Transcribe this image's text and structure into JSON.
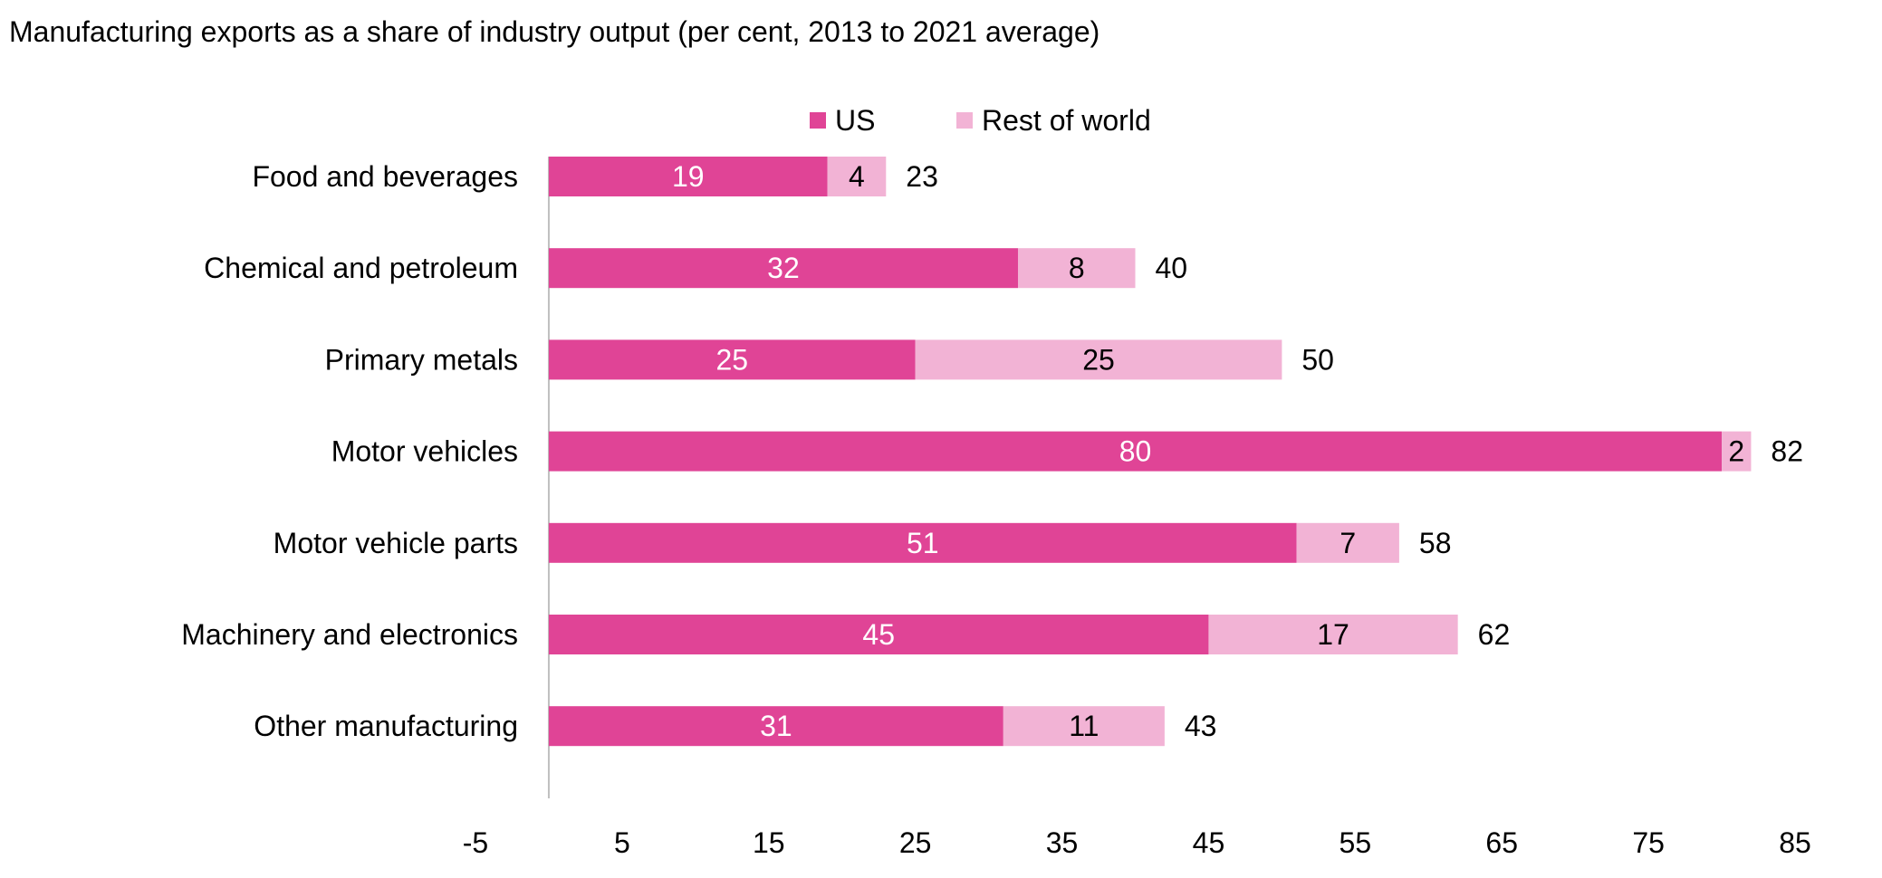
{
  "chart_data": {
    "type": "bar",
    "orientation": "horizontal",
    "stacked": true,
    "title": "Manufacturing exports as a share of industry output (per cent, 2013 to 2021 average)",
    "categories": [
      "Food and beverages",
      "Chemical and petroleum",
      "Primary metals",
      "Motor vehicles",
      "Motor vehicle parts",
      "Machinery and electronics",
      "Other manufacturing"
    ],
    "series": [
      {
        "name": "US",
        "color": "#E04496",
        "label_color": "#ffffff",
        "values": [
          19,
          32,
          25,
          80,
          51,
          45,
          31
        ]
      },
      {
        "name": "Rest of world",
        "color": "#F2B3D5",
        "label_color": "#000000",
        "values": [
          4,
          8,
          25,
          2,
          7,
          17,
          11
        ]
      }
    ],
    "totals": [
      23,
      40,
      50,
      82,
      58,
      62,
      43
    ],
    "xlim": [
      -5,
      85
    ],
    "x_ticks": [
      -5,
      5,
      15,
      25,
      35,
      45,
      55,
      65,
      75,
      85
    ],
    "xlabel": "",
    "ylabel": "",
    "grid": false,
    "legend_position": "top-center"
  }
}
